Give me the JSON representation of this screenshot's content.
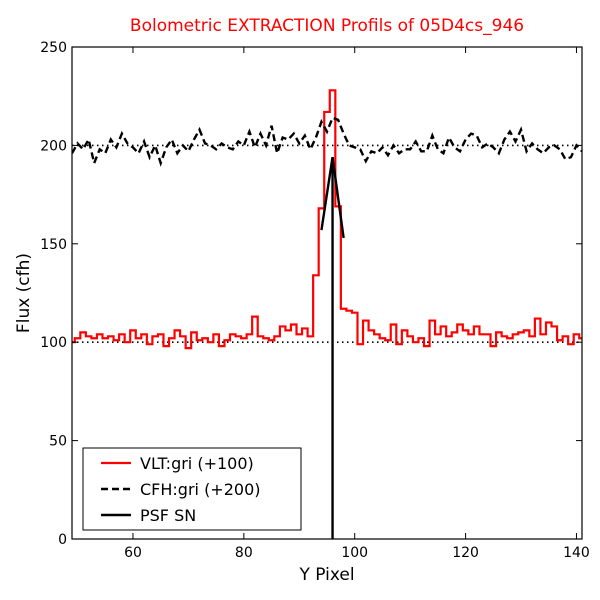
{
  "chart_data": {
    "type": "line",
    "title": "Bolometric EXTRACTION Profils of 05D4cs_946",
    "xlabel": "Y Pixel",
    "ylabel": "Flux (cfh)",
    "xlim": [
      49,
      141
    ],
    "ylim": [
      0,
      250
    ],
    "xticks": [
      60,
      80,
      100,
      120,
      140
    ],
    "yticks": [
      0,
      50,
      100,
      150,
      200,
      250
    ],
    "grid": false,
    "legend_position": "lower-left",
    "reference_lines": [
      100,
      200
    ],
    "series": [
      {
        "name": "VLT:gri (+100)",
        "style": "steps",
        "color": "#ff0000",
        "x": [
          49,
          50,
          51,
          52,
          53,
          54,
          55,
          56,
          57,
          58,
          59,
          60,
          61,
          62,
          63,
          64,
          65,
          66,
          67,
          68,
          69,
          70,
          71,
          72,
          73,
          74,
          75,
          76,
          77,
          78,
          79,
          80,
          81,
          82,
          83,
          84,
          85,
          86,
          87,
          88,
          89,
          90,
          91,
          92,
          93,
          94,
          95,
          96,
          97,
          98,
          99,
          100,
          101,
          102,
          103,
          104,
          105,
          106,
          107,
          108,
          109,
          110,
          111,
          112,
          113,
          114,
          115,
          116,
          117,
          118,
          119,
          120,
          121,
          122,
          123,
          124,
          125,
          126,
          127,
          128,
          129,
          130,
          131,
          132,
          133,
          134,
          135,
          136,
          137,
          138,
          139,
          140,
          141
        ],
        "y": [
          100,
          102,
          105,
          103,
          102,
          104,
          102,
          103,
          101,
          104,
          100,
          106,
          102,
          104,
          99,
          103,
          104,
          98,
          102,
          106,
          103,
          97,
          105,
          101,
          102,
          100,
          104,
          98,
          101,
          104,
          103,
          102,
          104,
          113,
          103,
          102,
          101,
          103,
          108,
          106,
          109,
          104,
          107,
          103,
          134,
          168,
          217,
          228,
          169,
          117,
          116,
          115,
          99,
          111,
          106,
          104,
          102,
          101,
          109,
          99,
          106,
          103,
          100,
          102,
          98,
          111,
          104,
          108,
          103,
          105,
          109,
          106,
          104,
          108,
          104,
          104,
          98,
          105,
          103,
          102,
          104,
          105,
          106,
          103,
          112,
          104,
          110,
          108,
          101,
          103,
          99,
          104,
          102
        ]
      },
      {
        "name": "CFH:gri (+200)",
        "style": "line-dashed",
        "color": "#000000",
        "x": [
          49,
          50,
          51,
          52,
          53,
          54,
          55,
          56,
          57,
          58,
          59,
          60,
          61,
          62,
          63,
          64,
          65,
          66,
          67,
          68,
          69,
          70,
          71,
          72,
          73,
          74,
          75,
          76,
          77,
          78,
          79,
          80,
          81,
          82,
          83,
          84,
          85,
          86,
          87,
          88,
          89,
          90,
          91,
          92,
          93,
          94,
          95,
          96,
          97,
          98,
          99,
          100,
          101,
          102,
          103,
          104,
          105,
          106,
          107,
          108,
          109,
          110,
          111,
          112,
          113,
          114,
          115,
          116,
          117,
          118,
          119,
          120,
          121,
          122,
          123,
          124,
          125,
          126,
          127,
          128,
          129,
          130,
          131,
          132,
          133,
          134,
          135,
          136,
          137,
          138,
          139,
          140,
          141
        ],
        "y": [
          196,
          201,
          198,
          203,
          191,
          198,
          196,
          203,
          199,
          206,
          201,
          199,
          196,
          202,
          194,
          200,
          191,
          199,
          203,
          196,
          200,
          197,
          203,
          208,
          201,
          200,
          198,
          201,
          199,
          198,
          202,
          200,
          207,
          199,
          206,
          200,
          210,
          196,
          204,
          203,
          206,
          201,
          205,
          198,
          204,
          212,
          207,
          214,
          213,
          206,
          200,
          199,
          198,
          192,
          197,
          196,
          199,
          195,
          200,
          196,
          198,
          198,
          202,
          197,
          197,
          205,
          198,
          196,
          204,
          199,
          197,
          203,
          206,
          205,
          199,
          201,
          199,
          196,
          203,
          207,
          202,
          208,
          197,
          201,
          198,
          196,
          199,
          200,
          198,
          193,
          194,
          200,
          197
        ]
      },
      {
        "name": "PSF SN",
        "style": "line",
        "color": "#000000",
        "x": [
          94,
          96,
          98
        ],
        "y": [
          157,
          194,
          153
        ]
      }
    ],
    "vertical_lines": [
      {
        "series": "PSF SN",
        "x": 96,
        "y_from": 0,
        "y_to": 194
      }
    ]
  }
}
